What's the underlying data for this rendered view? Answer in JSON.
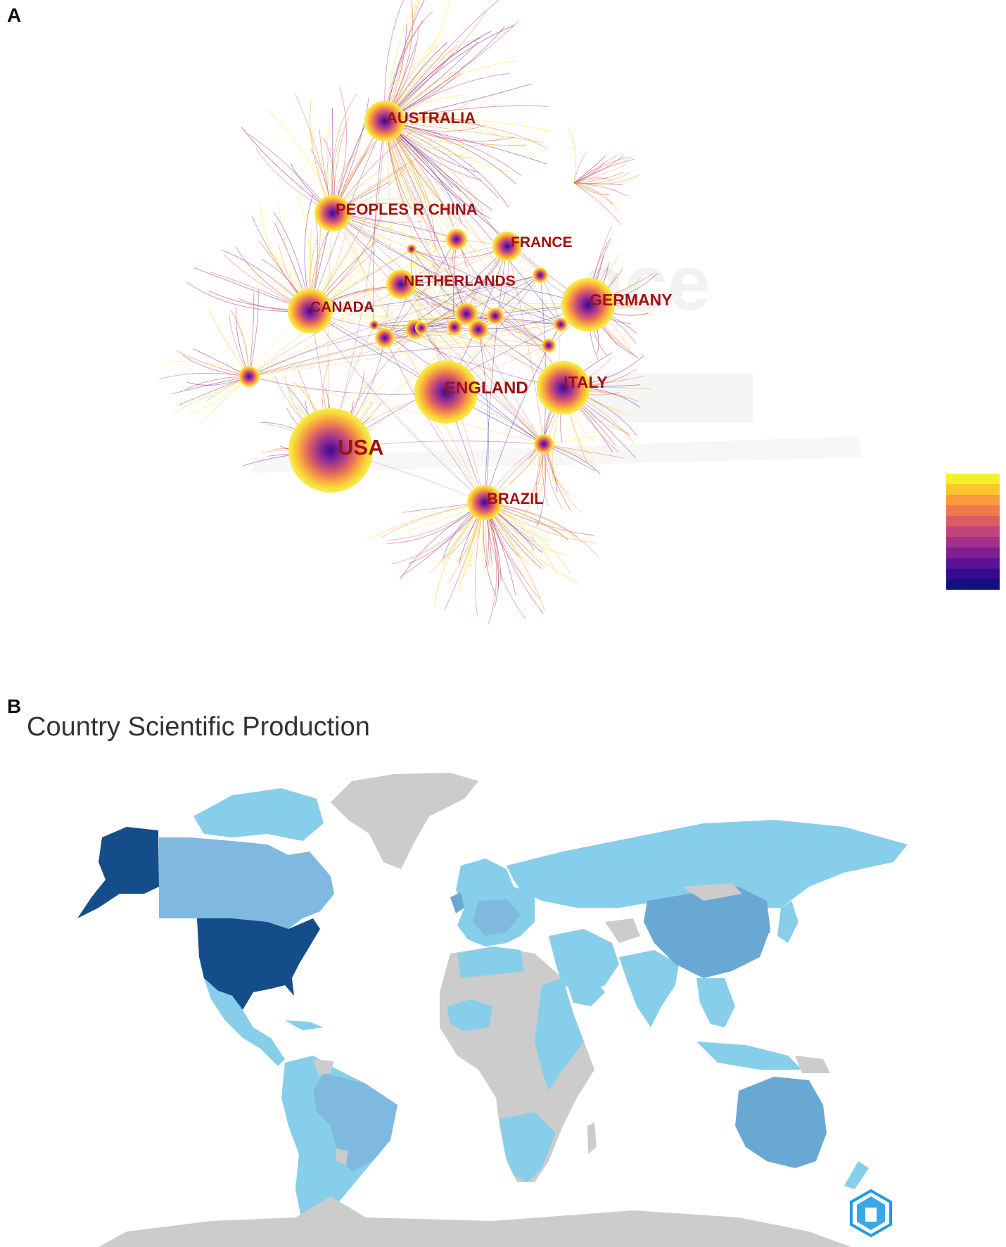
{
  "panel_a": {
    "letter": "A",
    "nodes": [
      {
        "label": "AUSTRALIA"
      },
      {
        "label": "PEOPLES R CHINA"
      },
      {
        "label": "FRANCE"
      },
      {
        "label": "NETHERLANDS"
      },
      {
        "label": "GERMANY"
      },
      {
        "label": "CANADA"
      },
      {
        "label": "ENGLAND"
      },
      {
        "label": "ITALY"
      },
      {
        "label": "USA"
      },
      {
        "label": "BRAZIL"
      }
    ],
    "colors": {
      "label": "#a01010",
      "legend": [
        "#f5ef2a",
        "#fbc530",
        "#f99b3b",
        "#ef7a4e",
        "#dc5c66",
        "#c2447a",
        "#a2318a",
        "#7f1f94",
        "#5e1195",
        "#340b8f",
        "#12107e"
      ]
    }
  },
  "panel_b": {
    "letter": "B",
    "title": "Country Scientific Production",
    "colors": {
      "highest": "#144d8a",
      "high": "#6aa8d4",
      "medium": "#7fb9e0",
      "low": "#87ceeb",
      "no_data": "#cccccc"
    }
  }
}
